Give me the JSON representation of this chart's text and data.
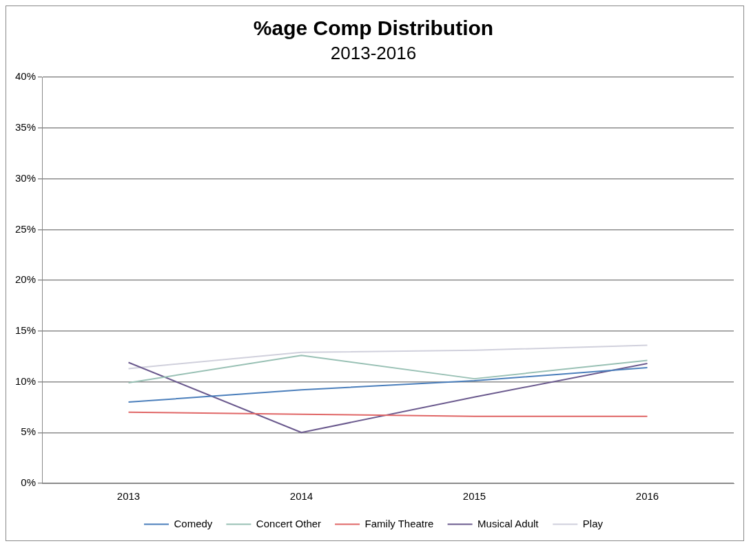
{
  "chart_data": {
    "type": "line",
    "title": "%age Comp Distribution",
    "subtitle": "2013-2016",
    "categories": [
      "2013",
      "2014",
      "2015",
      "2016"
    ],
    "series": [
      {
        "name": "Comedy",
        "color": "#4a7ebb",
        "values": [
          8.0,
          9.2,
          10.1,
          11.4
        ]
      },
      {
        "name": "Concert Other",
        "color": "#98c0b4",
        "values": [
          9.9,
          12.6,
          10.3,
          12.1
        ]
      },
      {
        "name": "Family Theatre",
        "color": "#e06666",
        "values": [
          7.0,
          6.8,
          6.6,
          6.6
        ]
      },
      {
        "name": "Musical Adult",
        "color": "#6b5a8e",
        "values": [
          11.9,
          5.0,
          8.5,
          11.8
        ]
      },
      {
        "name": "Play",
        "color": "#d0d0dc",
        "values": [
          11.3,
          12.9,
          13.1,
          13.6
        ]
      }
    ],
    "ylim": [
      0,
      40
    ],
    "yticks": [
      {
        "value": 0,
        "label": "0%"
      },
      {
        "value": 5,
        "label": "5%"
      },
      {
        "value": 10,
        "label": "10%"
      },
      {
        "value": 15,
        "label": "15%"
      },
      {
        "value": 20,
        "label": "20%"
      },
      {
        "value": 25,
        "label": "25%"
      },
      {
        "value": 30,
        "label": "30%"
      },
      {
        "value": 35,
        "label": "35%"
      },
      {
        "value": 40,
        "label": "40%"
      }
    ],
    "grid": "y",
    "legend": "bottom",
    "marker": "none",
    "line_style": "solid"
  }
}
